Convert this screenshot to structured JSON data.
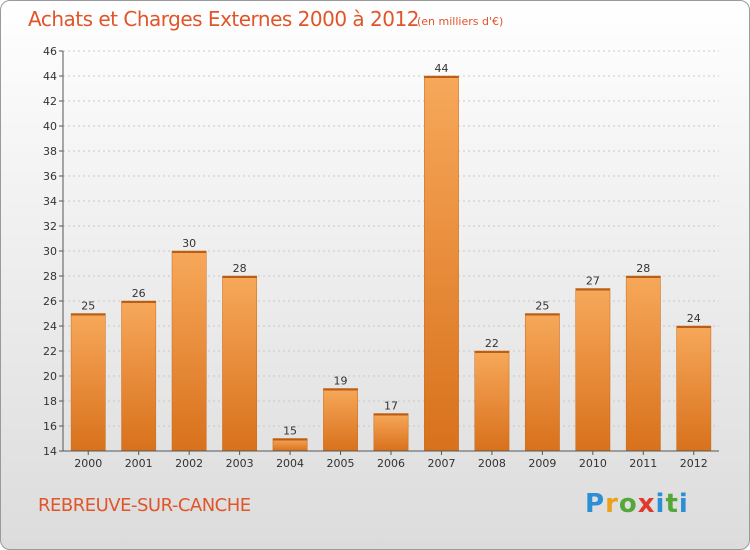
{
  "title": "Achats et Charges Externes 2000 à 2012",
  "unit_note": "(en milliers d'€)",
  "place": "REBREUVE-SUR-CANCHE",
  "logo": {
    "letters": [
      "P",
      "r",
      "o",
      "x",
      "i",
      "t",
      "i"
    ]
  },
  "chart_data": {
    "type": "bar",
    "categories": [
      "2000",
      "2001",
      "2002",
      "2003",
      "2004",
      "2005",
      "2006",
      "2007",
      "2008",
      "2009",
      "2010",
      "2011",
      "2012"
    ],
    "values": [
      25,
      26,
      30,
      28,
      15,
      19,
      17,
      44,
      22,
      25,
      27,
      28,
      24
    ],
    "ylim": [
      14,
      46
    ],
    "yticks": [
      14,
      16,
      18,
      20,
      22,
      24,
      26,
      28,
      30,
      32,
      34,
      36,
      38,
      40,
      42,
      44,
      46
    ],
    "grid": true,
    "bar_color": "#e8892e"
  }
}
